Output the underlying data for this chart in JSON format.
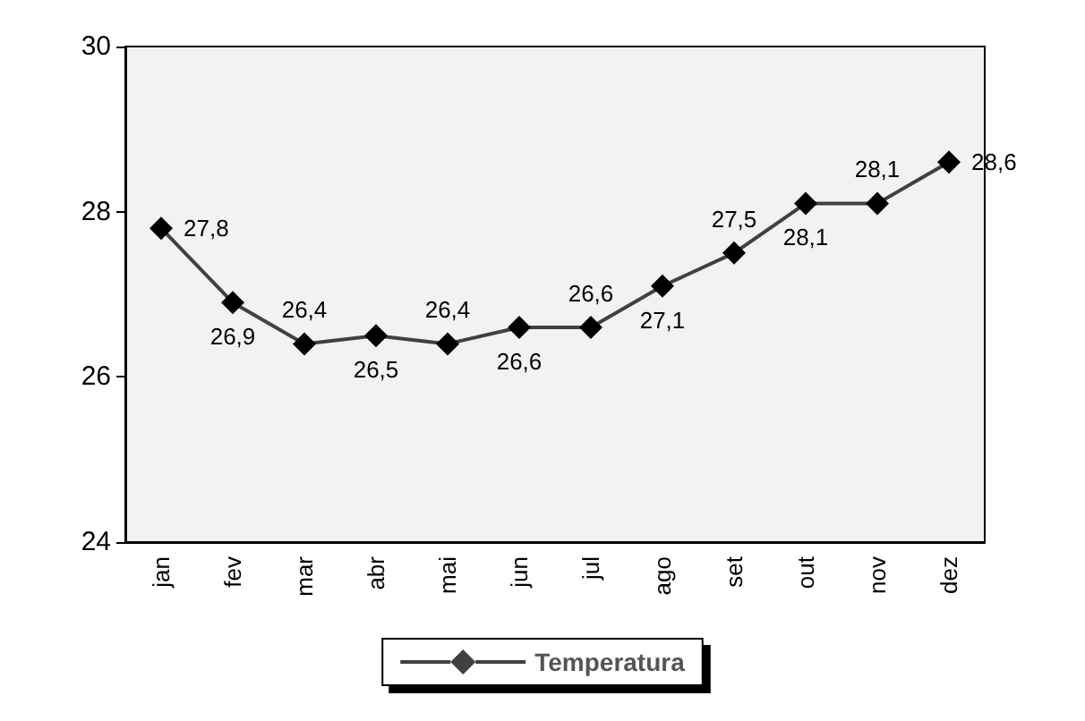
{
  "chart_data": {
    "type": "line",
    "categories": [
      "jan",
      "fev",
      "mar",
      "abr",
      "mai",
      "jun",
      "jul",
      "ago",
      "set",
      "out",
      "nov",
      "dez"
    ],
    "series": [
      {
        "name": "Temperatura",
        "color": "#404040",
        "values": [
          27.8,
          26.9,
          26.4,
          26.5,
          26.4,
          26.6,
          26.6,
          27.1,
          27.5,
          28.1,
          28.1,
          28.6
        ],
        "value_labels": [
          "27,8",
          "26,9",
          "26,4",
          "26,5",
          "26,4",
          "26,6",
          "26,6",
          "27,1",
          "27,5",
          "28,1",
          "28,1",
          "28,6"
        ]
      }
    ],
    "ylim": [
      24,
      30
    ],
    "yticks": [
      24,
      26,
      28,
      30
    ],
    "grid": false,
    "legend": "bottom",
    "marker": "diamond",
    "line_style": "solid"
  }
}
